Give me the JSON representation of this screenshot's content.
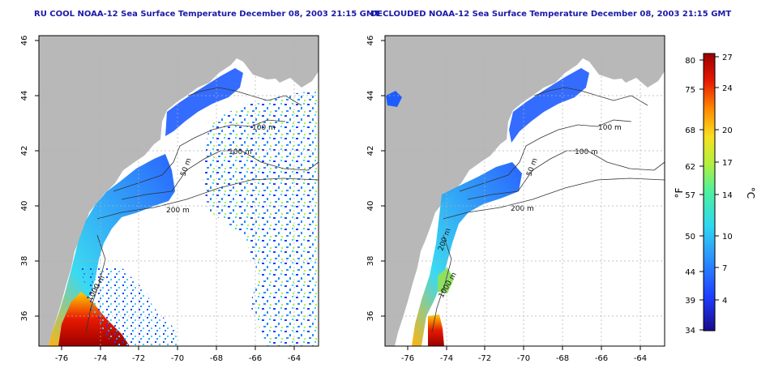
{
  "left_panel": {
    "title": "RU COOL NOAA-12 Sea Surface Temperature December 08, 2003 21:15 GMT",
    "contours": [
      "100 m",
      "100 m",
      "50 m",
      "200 m",
      "1000 m"
    ]
  },
  "right_panel": {
    "title": "DECLOUDED NOAA-12 Sea Surface Temperature December 08, 2003 21:15 GMT",
    "contours": [
      "100 m",
      "100 m",
      "50 m",
      "200 m",
      "1000 m",
      "200 m"
    ]
  },
  "axes": {
    "x_ticks": [
      "-76",
      "-74",
      "-72",
      "-70",
      "-68",
      "-66",
      "-64"
    ],
    "y_ticks": [
      "46",
      "44",
      "42",
      "40",
      "38",
      "36"
    ]
  },
  "colorbar": {
    "f_label": "°F",
    "c_label": "°C",
    "f_ticks": [
      "80",
      "75",
      "68",
      "62",
      "57",
      "50",
      "44",
      "39",
      "34"
    ],
    "c_ticks": [
      "27",
      "24",
      "20",
      "17",
      "14",
      "10",
      "7",
      "4"
    ],
    "gradient_colors": [
      "#1a0a8a",
      "#1e3cff",
      "#2a8cff",
      "#30d8f0",
      "#4cf0a0",
      "#b0f040",
      "#f8e020",
      "#ff8a00",
      "#e81a00",
      "#9a0000"
    ]
  },
  "colors": {
    "land": "#b8b8b8",
    "ocean": "#ffffff",
    "grid": "#b0b0b0",
    "title": "#1a1aa8"
  }
}
